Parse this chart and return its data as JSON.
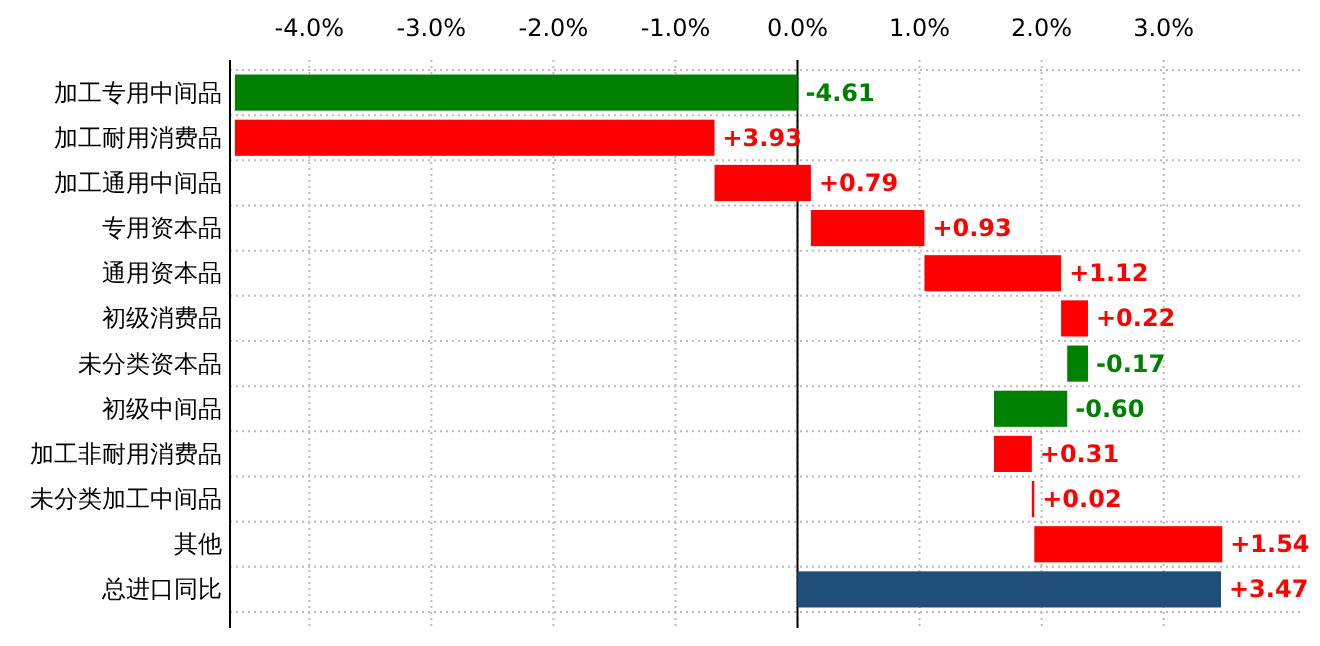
{
  "chart_data": {
    "type": "bar",
    "orientation": "horizontal",
    "categories": [
      "加工专用中间品",
      "加工耐用消费品",
      "加工通用中间品",
      "专用资本品",
      "通用资本品",
      "初级消费品",
      "未分类资本品",
      "初级中间品",
      "加工非耐用消费品",
      "未分类加工中间品",
      "其他",
      "总进口同比"
    ],
    "values": [
      -4.61,
      3.93,
      0.79,
      0.93,
      1.12,
      0.22,
      -0.17,
      -0.6,
      0.31,
      0.02,
      1.54,
      3.47
    ],
    "base": [
      0,
      -4.61,
      -0.68,
      0.11,
      1.04,
      2.16,
      2.38,
      2.21,
      1.61,
      1.92,
      1.94,
      0
    ],
    "colors": [
      "#008000",
      "#ff0000",
      "#ff0000",
      "#ff0000",
      "#ff0000",
      "#ff0000",
      "#008000",
      "#008000",
      "#ff0000",
      "#ff0000",
      "#ff0000",
      "#1f4e79"
    ],
    "value_labels": [
      "-4.61",
      "+3.93",
      "+0.79",
      "+0.93",
      "+1.12",
      "+0.22",
      "-0.17",
      "-0.60",
      "+0.31",
      "+0.02",
      "+1.54",
      "+3.47"
    ],
    "xlim": [
      -4.65,
      4.15
    ],
    "xticks": [
      {
        "value": -4,
        "label": "-4.0%"
      },
      {
        "value": -3,
        "label": "-3.0%"
      },
      {
        "value": -2,
        "label": "-2.0%"
      },
      {
        "value": -1,
        "label": "-1.0%"
      },
      {
        "value": 0,
        "label": "0.0%"
      },
      {
        "value": 1,
        "label": "1.0%"
      },
      {
        "value": 2,
        "label": "2.0%"
      },
      {
        "value": 3,
        "label": "3.0%"
      }
    ],
    "grid": true
  }
}
